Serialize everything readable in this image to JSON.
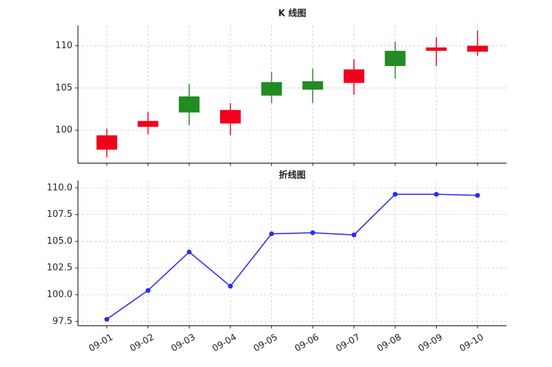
{
  "chart_data": [
    {
      "type": "candlestick",
      "title": "K 线图",
      "categories": [
        "09-01",
        "09-02",
        "09-03",
        "09-04",
        "09-05",
        "09-06",
        "09-07",
        "09-08",
        "09-09",
        "09-10"
      ],
      "open": [
        99.4,
        101.1,
        102.1,
        102.4,
        104.1,
        104.8,
        107.2,
        107.6,
        109.8,
        110.0
      ],
      "high": [
        100.2,
        102.2,
        105.5,
        103.2,
        106.9,
        107.3,
        108.4,
        110.5,
        111.0,
        111.8
      ],
      "low": [
        96.8,
        99.5,
        100.6,
        99.4,
        103.2,
        103.2,
        104.2,
        106.1,
        107.6,
        108.8
      ],
      "close": [
        97.7,
        100.4,
        104.0,
        100.8,
        105.7,
        105.8,
        105.6,
        109.4,
        109.4,
        109.3
      ],
      "up_color": "#228b22",
      "down_color": "#f0001c",
      "ylim": [
        96.1,
        112.4
      ],
      "yticks": [
        100,
        105,
        110
      ],
      "grid": true
    },
    {
      "type": "line",
      "title": "折线图",
      "categories": [
        "09-01",
        "09-02",
        "09-03",
        "09-04",
        "09-05",
        "09-06",
        "09-07",
        "09-08",
        "09-09",
        "09-10"
      ],
      "values": [
        97.7,
        100.4,
        104.0,
        100.8,
        105.7,
        105.8,
        105.6,
        109.4,
        109.4,
        109.3
      ],
      "color": "#2b2bf5",
      "ylim": [
        97.1,
        110.7
      ],
      "yticks": [
        97.5,
        {
          "value": 100,
          "label": "100.0"
        },
        102.5,
        {
          "value": 105,
          "label": "105.0"
        },
        107.5,
        {
          "value": 110,
          "label": "110.0"
        }
      ],
      "grid": true
    }
  ]
}
